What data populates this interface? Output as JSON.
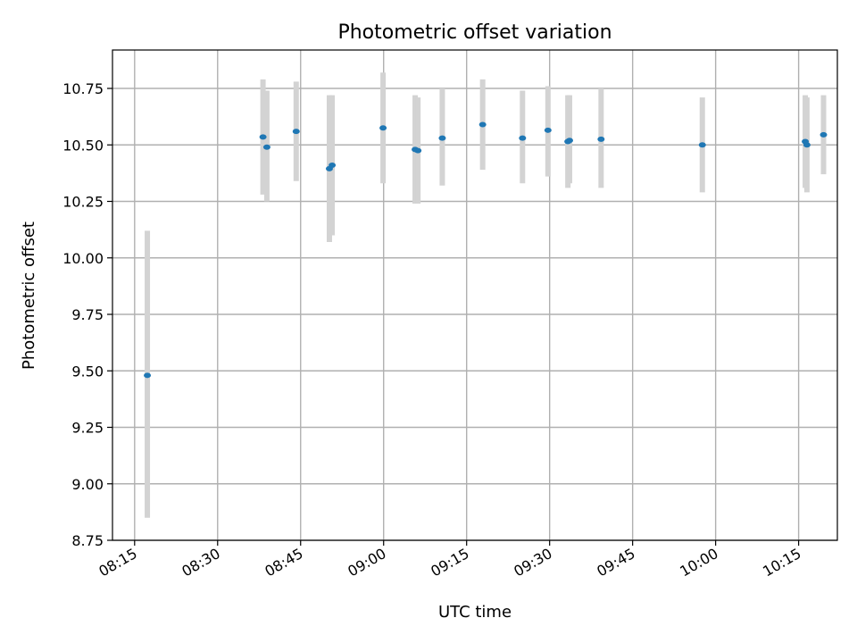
{
  "chart_data": {
    "type": "scatter",
    "title": "Photometric offset variation",
    "xlabel": "UTC time",
    "ylabel": "Photometric offset",
    "ylim": [
      8.75,
      10.92
    ],
    "xlim": [
      "08:11",
      "10:22"
    ],
    "grid": true,
    "ytick_labels": [
      "8.75",
      "9.00",
      "9.25",
      "9.50",
      "9.75",
      "10.00",
      "10.25",
      "10.50",
      "10.75"
    ],
    "xtick_labels": [
      "08:15",
      "08:30",
      "08:45",
      "09:00",
      "09:15",
      "09:30",
      "09:45",
      "10:00",
      "10:15"
    ],
    "marker_color": "#1f77b4",
    "errorbar_color": "#d3d3d3",
    "series": [
      {
        "points": [
          {
            "x": "08:17:18",
            "y": 9.48,
            "ylow": 8.85,
            "yhigh": 10.12
          },
          {
            "x": "08:38:12",
            "y": 10.535,
            "ylow": 10.28,
            "yhigh": 10.79
          },
          {
            "x": "08:38:54",
            "y": 10.49,
            "ylow": 10.25,
            "yhigh": 10.74
          },
          {
            "x": "08:44:12",
            "y": 10.56,
            "ylow": 10.34,
            "yhigh": 10.78
          },
          {
            "x": "08:50:12",
            "y": 10.395,
            "ylow": 10.07,
            "yhigh": 10.72
          },
          {
            "x": "08:50:42",
            "y": 10.41,
            "ylow": 10.1,
            "yhigh": 10.72
          },
          {
            "x": "08:59:54",
            "y": 10.575,
            "ylow": 10.33,
            "yhigh": 10.82
          },
          {
            "x": "09:05:42",
            "y": 10.48,
            "ylow": 10.24,
            "yhigh": 10.72
          },
          {
            "x": "09:06:12",
            "y": 10.475,
            "ylow": 10.24,
            "yhigh": 10.71
          },
          {
            "x": "09:10:36",
            "y": 10.53,
            "ylow": 10.32,
            "yhigh": 10.75
          },
          {
            "x": "09:17:54",
            "y": 10.59,
            "ylow": 10.39,
            "yhigh": 10.79
          },
          {
            "x": "09:25:06",
            "y": 10.53,
            "ylow": 10.33,
            "yhigh": 10.74
          },
          {
            "x": "09:29:42",
            "y": 10.565,
            "ylow": 10.36,
            "yhigh": 10.76
          },
          {
            "x": "09:33:18",
            "y": 10.515,
            "ylow": 10.31,
            "yhigh": 10.72
          },
          {
            "x": "09:33:36",
            "y": 10.52,
            "ylow": 10.33,
            "yhigh": 10.72
          },
          {
            "x": "09:39:18",
            "y": 10.525,
            "ylow": 10.31,
            "yhigh": 10.75
          },
          {
            "x": "09:57:36",
            "y": 10.5,
            "ylow": 10.29,
            "yhigh": 10.71
          },
          {
            "x": "10:16:12",
            "y": 10.515,
            "ylow": 10.31,
            "yhigh": 10.72
          },
          {
            "x": "10:16:30",
            "y": 10.5,
            "ylow": 10.29,
            "yhigh": 10.71
          },
          {
            "x": "10:19:30",
            "y": 10.545,
            "ylow": 10.37,
            "yhigh": 10.72
          }
        ]
      }
    ]
  }
}
